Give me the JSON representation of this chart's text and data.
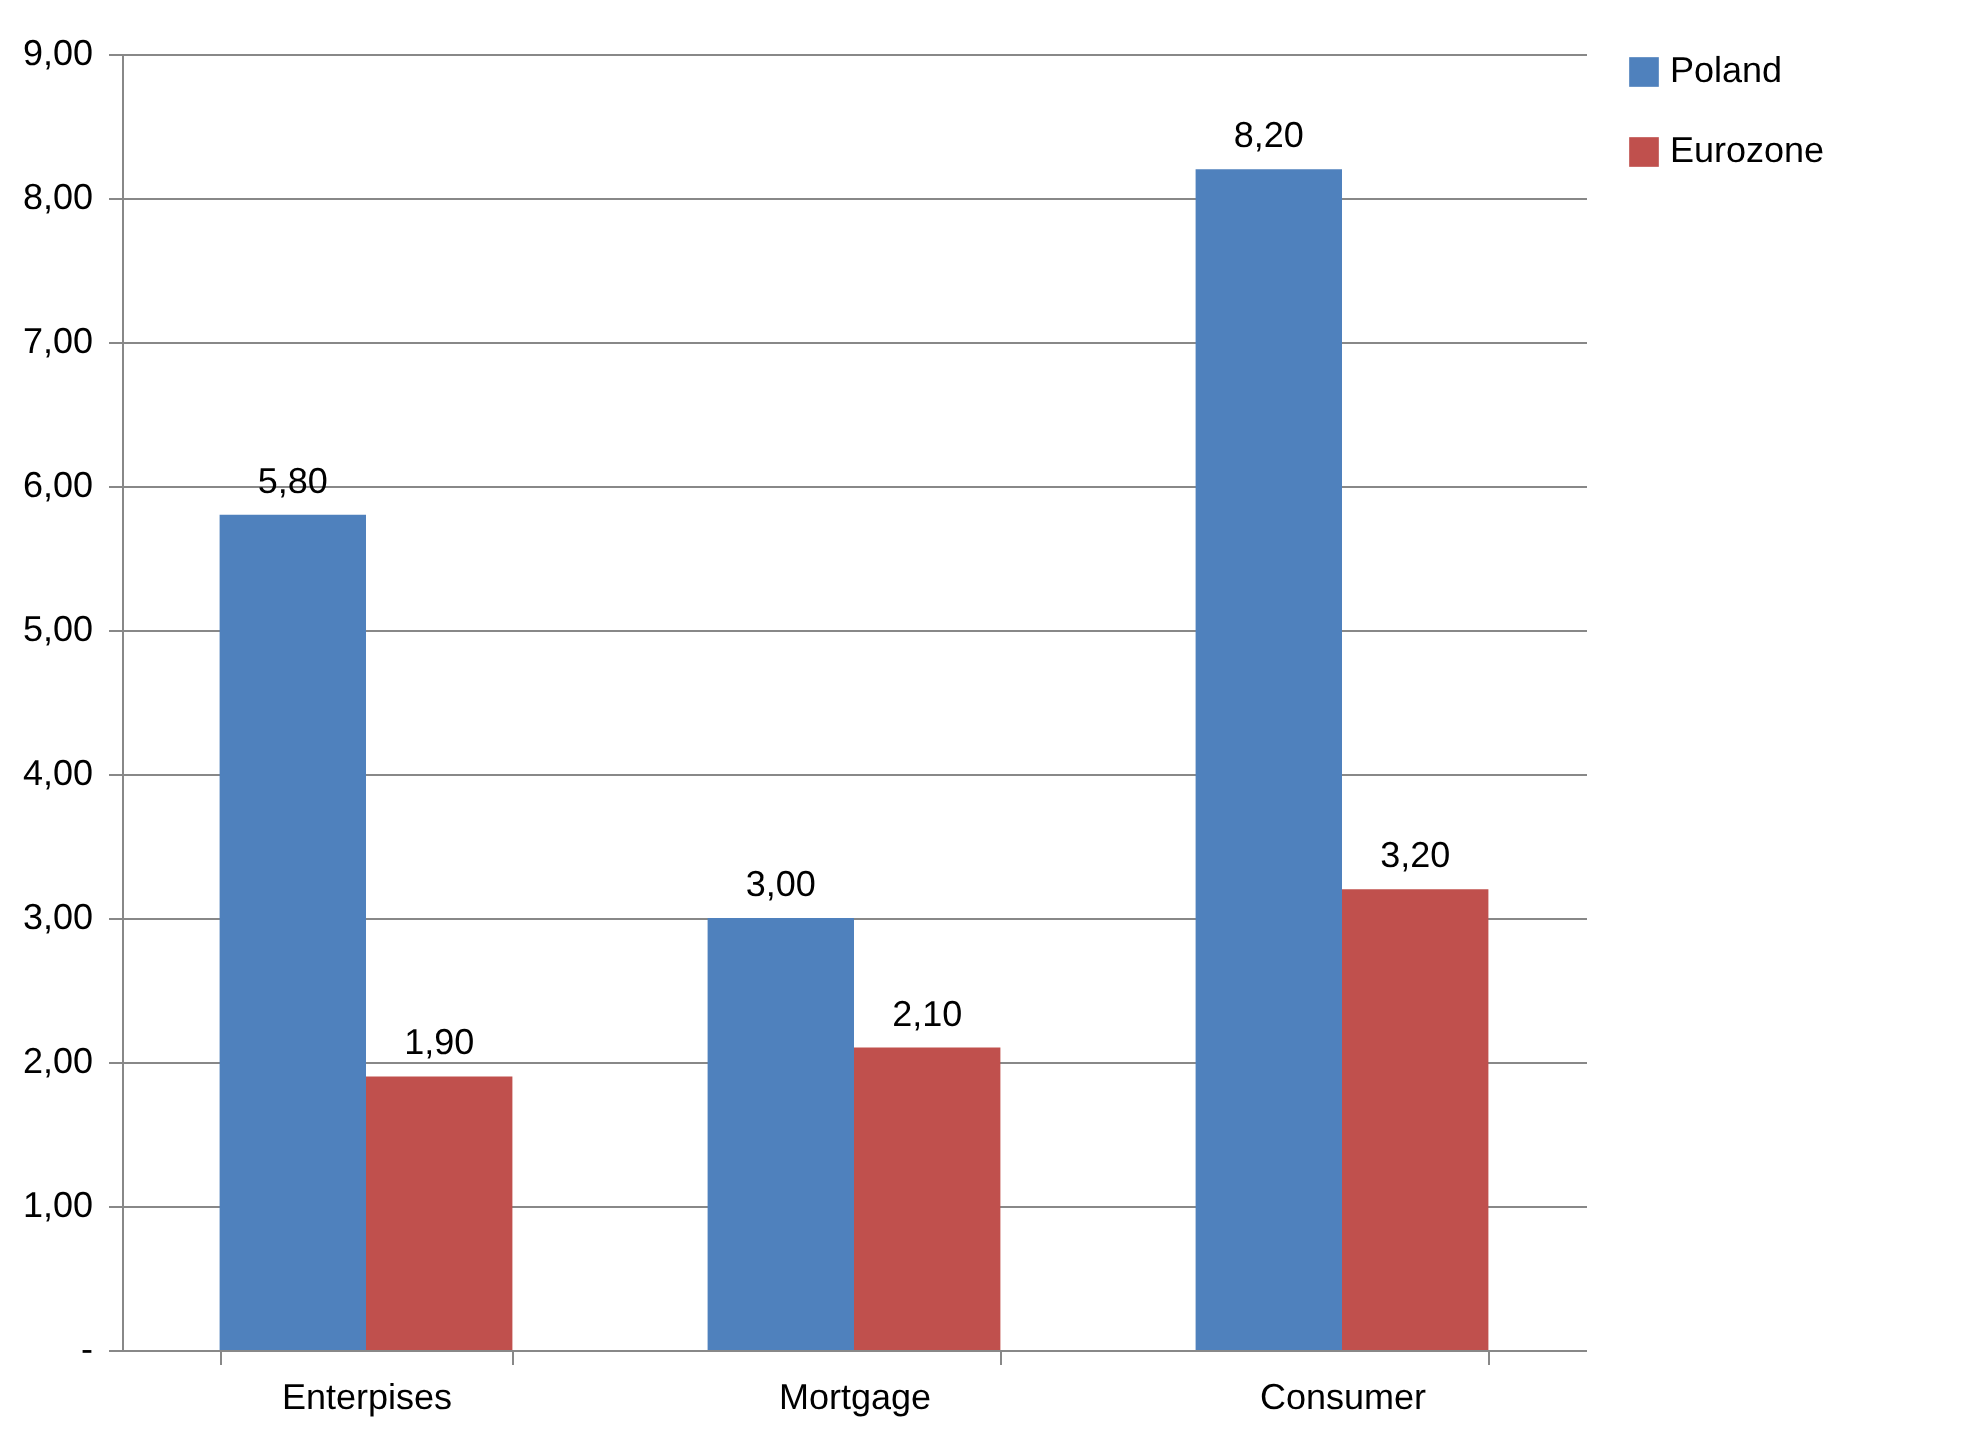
{
  "chart_data": {
    "type": "bar",
    "categories": [
      "Enterpises",
      "Mortgage",
      "Consumer"
    ],
    "series": [
      {
        "name": "Poland",
        "color": "#4f81bd",
        "values": [
          5.8,
          3.0,
          8.2
        ],
        "value_labels": [
          "5,80",
          "3,00",
          "8,20"
        ]
      },
      {
        "name": "Eurozone",
        "color": "#c0504d",
        "values": [
          1.9,
          2.1,
          3.2
        ],
        "value_labels": [
          "1,90",
          "2,10",
          "3,20"
        ]
      }
    ],
    "ylim": [
      0,
      9
    ],
    "yticks": [
      {
        "value": 0,
        "label": "-"
      },
      {
        "value": 1,
        "label": "1,00"
      },
      {
        "value": 2,
        "label": "2,00"
      },
      {
        "value": 3,
        "label": "3,00"
      },
      {
        "value": 4,
        "label": "4,00"
      },
      {
        "value": 5,
        "label": "5,00"
      },
      {
        "value": 6,
        "label": "6,00"
      },
      {
        "value": 7,
        "label": "7,00"
      },
      {
        "value": 8,
        "label": "8,00"
      },
      {
        "value": 9,
        "label": "9,00"
      }
    ],
    "grid": "y",
    "legend": "right"
  }
}
